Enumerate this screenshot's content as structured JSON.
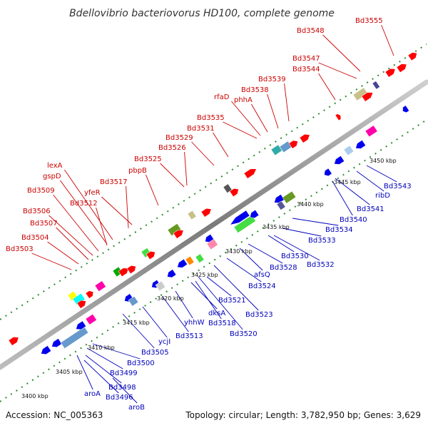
{
  "title": "Bdellovibrio bacteriovorus HD100, complete genome",
  "footer": {
    "accession": "Accession: NC_005363",
    "summary": "Topology: circular; Length: 3,782,950 bp; Genes: 3,629"
  },
  "colors": {
    "forward_label": "#cc0000",
    "reverse_label": "#0000bb",
    "forward_gene": "#ff0000",
    "reverse_gene": "#0000ee",
    "backbone": "#888888",
    "tick": "#2f8a2f"
  },
  "ticks": [
    "3400 kbp",
    "3405 kbp",
    "3410 kbp",
    "3415 kbp",
    "3420 kbp",
    "3425 kbp",
    "3430 kbp",
    "3435 kbp",
    "3440 kbp",
    "3445 kbp",
    "3450 kbp"
  ],
  "forward_labels": [
    "Bd3503",
    "Bd3504",
    "Bd3507",
    "Bd3506",
    "Bd3512",
    "Bd3509",
    "gspD",
    "lexA",
    "yfeR",
    "Bd3517",
    "pbpB",
    "Bd3525",
    "Bd3526",
    "Bd3529",
    "Bd3531",
    "Bd3535",
    "rfaD",
    "phhA",
    "Bd3538",
    "Bd3539",
    "Bd3544",
    "Bd3547",
    "Bd3548",
    "Bd3555"
  ],
  "reverse_labels": [
    "aroB",
    "Bd3496",
    "aroA",
    "Bd3498",
    "Bd3499",
    "Bd3500",
    "Bd3505",
    "ycjI",
    "Bd3513",
    "yhhW",
    "dksA",
    "Bd3518",
    "Bd3520",
    "Bd3521",
    "Bd3523",
    "Bd3524",
    "afsQ",
    "Bd3528",
    "Bd3530",
    "Bd3532",
    "Bd3533",
    "Bd3534",
    "Bd3540",
    "Bd3541",
    "ribD",
    "Bd3543"
  ]
}
